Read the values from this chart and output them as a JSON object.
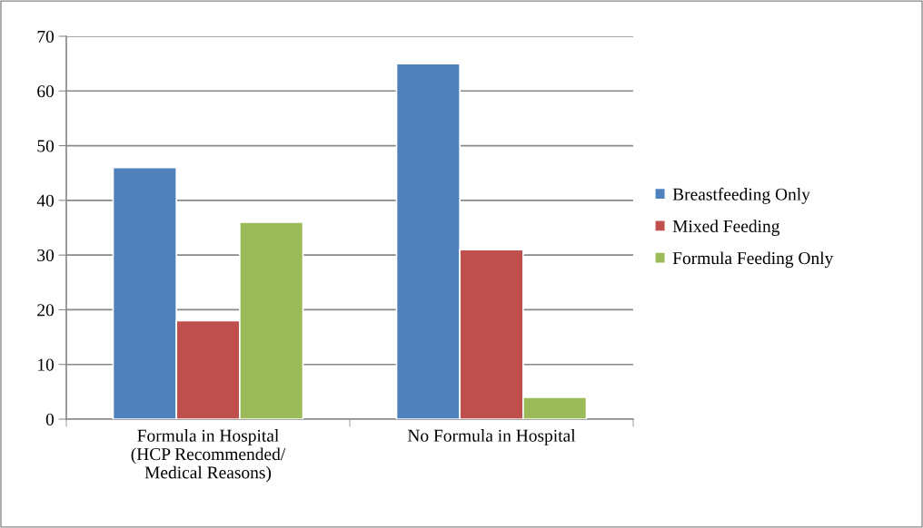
{
  "chart_data": {
    "type": "bar",
    "categories": [
      "Formula in Hospital\n(HCP Recommended/\nMedical Reasons)",
      "No Formula in Hospital"
    ],
    "series": [
      {
        "name": "Breastfeeding Only",
        "color": "#4f81bd",
        "values": [
          46,
          65
        ]
      },
      {
        "name": "Mixed Feeding",
        "color": "#c0504d",
        "values": [
          18,
          31
        ]
      },
      {
        "name": "Formula Feeding Only",
        "color": "#9bbb59",
        "values": [
          36,
          4
        ]
      }
    ],
    "ylim": [
      0,
      70
    ],
    "yticks": [
      0,
      10,
      20,
      30,
      40,
      50,
      60,
      70
    ],
    "grid": "y",
    "legend": "right"
  }
}
